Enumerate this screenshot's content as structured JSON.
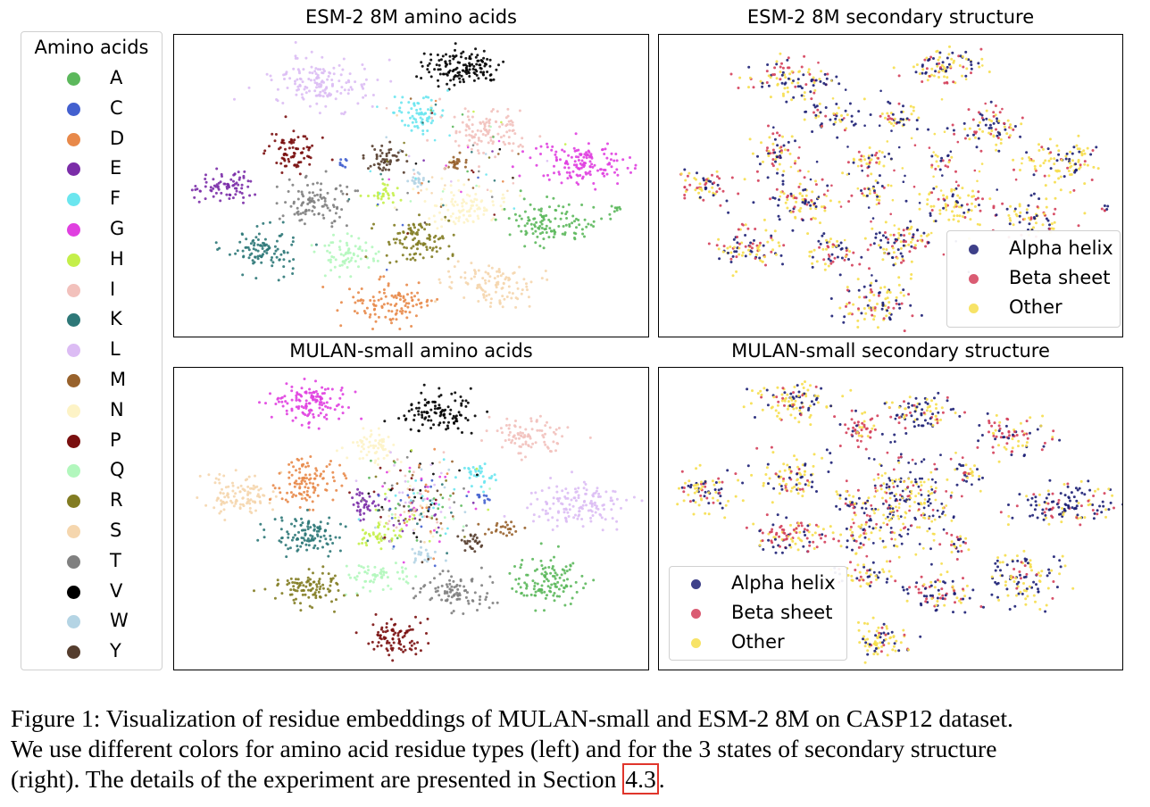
{
  "figure": {
    "panels": {
      "esm_aa": {
        "title": "ESM-2 8M amino acids"
      },
      "esm_ss": {
        "title": "ESM-2 8M secondary structure"
      },
      "mulan_aa": {
        "title": "MULAN-small amino acids"
      },
      "mulan_ss": {
        "title": "MULAN-small secondary structure"
      }
    },
    "aa_legend": {
      "title": "Amino acids",
      "items": [
        {
          "label": "A",
          "color": "#5cb85c"
        },
        {
          "label": "C",
          "color": "#4360cf"
        },
        {
          "label": "D",
          "color": "#e8894a"
        },
        {
          "label": "E",
          "color": "#7b2da8"
        },
        {
          "label": "F",
          "color": "#6be6ef"
        },
        {
          "label": "G",
          "color": "#e040e0"
        },
        {
          "label": "H",
          "color": "#c4ef4a"
        },
        {
          "label": "I",
          "color": "#f2c1bc"
        },
        {
          "label": "K",
          "color": "#2e7878"
        },
        {
          "label": "L",
          "color": "#dcbcf4"
        },
        {
          "label": "M",
          "color": "#98622c"
        },
        {
          "label": "N",
          "color": "#fdf3c6"
        },
        {
          "label": "P",
          "color": "#7a1010"
        },
        {
          "label": "Q",
          "color": "#b2f7bd"
        },
        {
          "label": "R",
          "color": "#827c22"
        },
        {
          "label": "S",
          "color": "#f5d6ae"
        },
        {
          "label": "T",
          "color": "#808080"
        },
        {
          "label": "V",
          "color": "#000000"
        },
        {
          "label": "W",
          "color": "#b4d4e4"
        },
        {
          "label": "Y",
          "color": "#553d2e"
        }
      ]
    },
    "ss_legend": {
      "items": [
        {
          "label": "Alpha helix",
          "color": "#1c1f74"
        },
        {
          "label": "Beta sheet",
          "color": "#d43f5a"
        },
        {
          "label": "Other",
          "color": "#f6de4c"
        }
      ]
    },
    "caption": {
      "line1": "Figure 1: Visualization of residue embeddings of MULAN-small and ESM-2 8M on CASP12 dataset.",
      "line2": "We use different colors for amino acid residue types (left) and for the 3 states of secondary structure",
      "line3_before": "(right). The details of the experiment are presented in Section ",
      "line3_ref": "4.3",
      "line3_after": "."
    }
  }
}
